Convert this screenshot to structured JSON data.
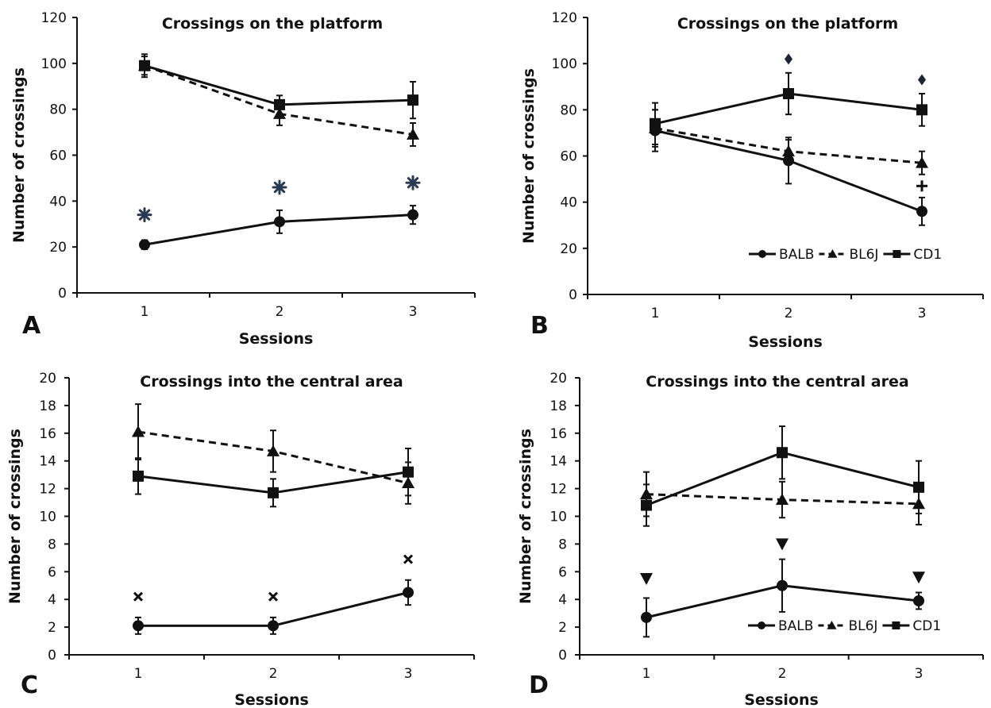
{
  "figure": {
    "legend_entries": [
      "BALB",
      "BL6J",
      "CD1"
    ],
    "colors": {
      "line": "#111111",
      "asterisk": "#2b3a52",
      "diamond": "#1a2433",
      "background": "#ffffff"
    }
  },
  "chart_data": [
    {
      "panel": "A",
      "type": "line",
      "title": "Crossings on the platform",
      "xlabel": "Sessions",
      "ylabel": "Number of crossings",
      "categories": [
        "1",
        "2",
        "3"
      ],
      "ylim": [
        0,
        120
      ],
      "yticks": [
        0,
        20,
        40,
        60,
        80,
        100,
        120
      ],
      "legend": "none",
      "series": [
        {
          "name": "BALB",
          "marker": "circle",
          "dash": "solid",
          "values": [
            21,
            31,
            34
          ],
          "errors": [
            2,
            5,
            4
          ]
        },
        {
          "name": "BL6J",
          "marker": "triangle",
          "dash": "dashed",
          "values": [
            99,
            78,
            69
          ],
          "errors": [
            4,
            5,
            5
          ]
        },
        {
          "name": "CD1",
          "marker": "square",
          "dash": "solid",
          "values": [
            99,
            82,
            84
          ],
          "errors": [
            5,
            4,
            8
          ]
        }
      ],
      "annotations": [
        {
          "symbol": "asterisk",
          "x": "1",
          "y": 34
        },
        {
          "symbol": "asterisk",
          "x": "2",
          "y": 46
        },
        {
          "symbol": "asterisk",
          "x": "3",
          "y": 48
        }
      ]
    },
    {
      "panel": "B",
      "type": "line",
      "title": "Crossings on the platform",
      "xlabel": "Sessions",
      "ylabel": "Number of crossings",
      "categories": [
        "1",
        "2",
        "3"
      ],
      "ylim": [
        0,
        120
      ],
      "yticks": [
        0,
        20,
        40,
        60,
        80,
        100,
        120
      ],
      "legend": "bottom-right",
      "series": [
        {
          "name": "BALB",
          "marker": "circle",
          "dash": "solid",
          "values": [
            71,
            58,
            36
          ],
          "errors": [
            9,
            10,
            6
          ]
        },
        {
          "name": "BL6J",
          "marker": "triangle",
          "dash": "dashed",
          "values": [
            72,
            62,
            57
          ],
          "errors": [
            8,
            5,
            5
          ]
        },
        {
          "name": "CD1",
          "marker": "square",
          "dash": "solid",
          "values": [
            74,
            87,
            80
          ],
          "errors": [
            9,
            9,
            7
          ]
        }
      ],
      "annotations": [
        {
          "symbol": "diamond",
          "x": "2",
          "y": 102
        },
        {
          "symbol": "diamond",
          "x": "3",
          "y": 93
        },
        {
          "symbol": "plus",
          "x": "3",
          "y": 47
        }
      ]
    },
    {
      "panel": "C",
      "type": "line",
      "title": "Crossings into the central area",
      "xlabel": "Sessions",
      "ylabel": "Number of crossings",
      "categories": [
        "1",
        "2",
        "3"
      ],
      "ylim": [
        0,
        20
      ],
      "yticks": [
        0,
        2,
        4,
        6,
        8,
        10,
        12,
        14,
        16,
        18,
        20
      ],
      "legend": "none",
      "series": [
        {
          "name": "BALB",
          "marker": "circle",
          "dash": "solid",
          "values": [
            2.1,
            2.1,
            4.5
          ],
          "errors": [
            0.6,
            0.6,
            0.9
          ]
        },
        {
          "name": "BL6J",
          "marker": "triangle",
          "dash": "dashed",
          "values": [
            16.1,
            14.7,
            12.4
          ],
          "errors": [
            2.0,
            1.5,
            1.5
          ]
        },
        {
          "name": "CD1",
          "marker": "square",
          "dash": "solid",
          "values": [
            12.9,
            11.7,
            13.2
          ],
          "errors": [
            1.3,
            1.0,
            1.7
          ]
        }
      ],
      "annotations": [
        {
          "symbol": "cross",
          "x": "1",
          "y": 4.2
        },
        {
          "symbol": "cross",
          "x": "2",
          "y": 4.2
        },
        {
          "symbol": "cross",
          "x": "3",
          "y": 6.9
        }
      ]
    },
    {
      "panel": "D",
      "type": "line",
      "title": "Crossings into the central area",
      "xlabel": "Sessions",
      "ylabel": "Number of crossings",
      "categories": [
        "1",
        "2",
        "3"
      ],
      "ylim": [
        0,
        20
      ],
      "yticks": [
        0,
        2,
        4,
        6,
        8,
        10,
        12,
        14,
        16,
        18,
        20
      ],
      "legend": "bottom-right",
      "series": [
        {
          "name": "BALB",
          "marker": "circle",
          "dash": "solid",
          "values": [
            2.7,
            5.0,
            3.9
          ],
          "errors": [
            1.4,
            1.9,
            0.6
          ]
        },
        {
          "name": "BL6J",
          "marker": "triangle",
          "dash": "dashed",
          "values": [
            11.6,
            11.2,
            10.9
          ],
          "errors": [
            1.6,
            1.3,
            1.5
          ]
        },
        {
          "name": "CD1",
          "marker": "square",
          "dash": "solid",
          "values": [
            10.8,
            14.6,
            12.1
          ],
          "errors": [
            1.5,
            1.9,
            1.9
          ]
        }
      ],
      "annotations": [
        {
          "symbol": "triangle-down",
          "x": "1",
          "y": 5.5
        },
        {
          "symbol": "triangle-down",
          "x": "2",
          "y": 8.0
        },
        {
          "symbol": "triangle-down",
          "x": "3",
          "y": 5.6
        }
      ]
    }
  ]
}
